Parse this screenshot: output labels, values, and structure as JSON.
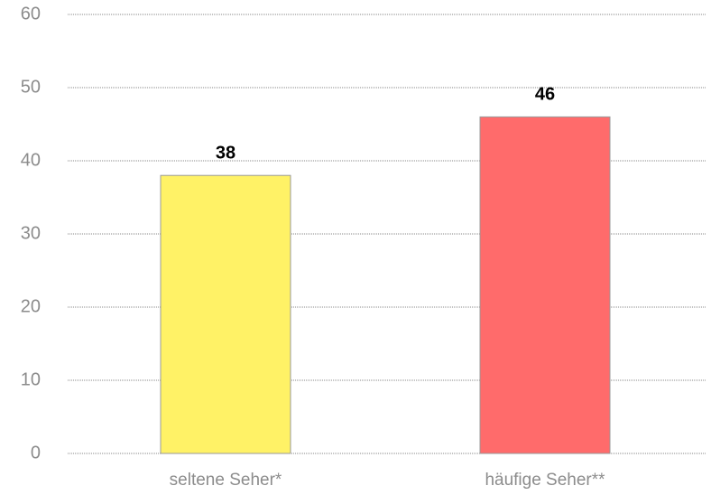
{
  "chart_data": {
    "type": "bar",
    "categories": [
      "seltene Seher*",
      "häufige Seher**"
    ],
    "values": [
      38,
      46
    ],
    "colors": [
      "#fff266",
      "#ff6b6b"
    ],
    "ylim": [
      0,
      60
    ],
    "yticks": [
      0,
      10,
      20,
      30,
      40,
      50,
      60
    ],
    "grid": true
  }
}
